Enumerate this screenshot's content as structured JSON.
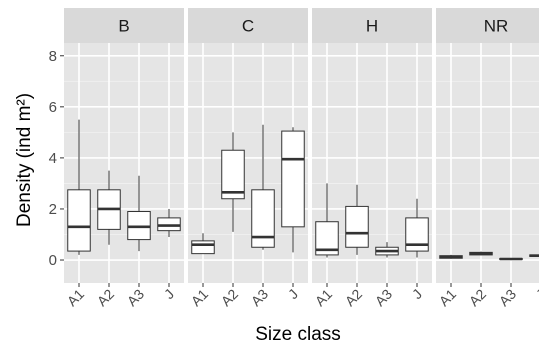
{
  "chart_data": {
    "type": "boxplot",
    "title": "",
    "xlabel": "Size class",
    "ylabel": "Density (ind m²)",
    "ylim": [
      -0.9,
      8.5
    ],
    "yticks": [
      0,
      2,
      4,
      6,
      8
    ],
    "categories": [
      "A1",
      "A2",
      "A3",
      "J"
    ],
    "grid": true,
    "colors": {
      "panel_bg": "#e5e5e5",
      "strip_bg": "#d9d9d9",
      "grid_major": "#ffffff",
      "grid_minor": "#f2f2f2",
      "box_line": "#333333",
      "box_fill": "#ffffff"
    },
    "facets": [
      {
        "name": "B",
        "boxes": [
          {
            "x": "A1",
            "min": 0.2,
            "q1": 0.35,
            "median": 1.3,
            "q3": 2.75,
            "max": 5.5
          },
          {
            "x": "A2",
            "min": 0.6,
            "q1": 1.2,
            "median": 2.0,
            "q3": 2.75,
            "max": 3.5
          },
          {
            "x": "A3",
            "min": 0.35,
            "q1": 0.8,
            "median": 1.3,
            "q3": 1.9,
            "max": 3.3
          },
          {
            "x": "J",
            "min": 0.9,
            "q1": 1.15,
            "median": 1.35,
            "q3": 1.65,
            "max": 2.0
          }
        ]
      },
      {
        "name": "C",
        "boxes": [
          {
            "x": "A1",
            "min": 0.25,
            "q1": 0.25,
            "median": 0.6,
            "q3": 0.75,
            "max": 1.05
          },
          {
            "x": "A2",
            "min": 1.1,
            "q1": 2.4,
            "median": 2.65,
            "q3": 4.3,
            "max": 5.0
          },
          {
            "x": "A3",
            "min": 0.4,
            "q1": 0.5,
            "median": 0.9,
            "q3": 2.75,
            "max": 5.3
          },
          {
            "x": "J",
            "min": 0.3,
            "q1": 1.3,
            "median": 3.95,
            "q3": 5.05,
            "max": 5.2
          }
        ]
      },
      {
        "name": "H",
        "boxes": [
          {
            "x": "A1",
            "min": 0.1,
            "q1": 0.2,
            "median": 0.4,
            "q3": 1.5,
            "max": 3.0
          },
          {
            "x": "A2",
            "min": 0.2,
            "q1": 0.5,
            "median": 1.05,
            "q3": 2.1,
            "max": 2.95
          },
          {
            "x": "A3",
            "min": 0.1,
            "q1": 0.2,
            "median": 0.35,
            "q3": 0.5,
            "max": 0.7
          },
          {
            "x": "J",
            "min": 0.1,
            "q1": 0.35,
            "median": 0.6,
            "q3": 1.65,
            "max": 2.4
          }
        ]
      },
      {
        "name": "NR",
        "boxes": [
          {
            "x": "A1",
            "min": 0.05,
            "q1": 0.07,
            "median": 0.12,
            "q3": 0.17,
            "max": 0.2
          },
          {
            "x": "A2",
            "min": 0.18,
            "q1": 0.2,
            "median": 0.25,
            "q3": 0.3,
            "max": 0.33
          },
          {
            "x": "A3",
            "min": 0.0,
            "q1": 0.02,
            "median": 0.04,
            "q3": 0.06,
            "max": 0.08
          },
          {
            "x": "J",
            "min": 0.12,
            "q1": 0.14,
            "median": 0.17,
            "q3": 0.2,
            "max": 0.22
          }
        ]
      }
    ]
  }
}
